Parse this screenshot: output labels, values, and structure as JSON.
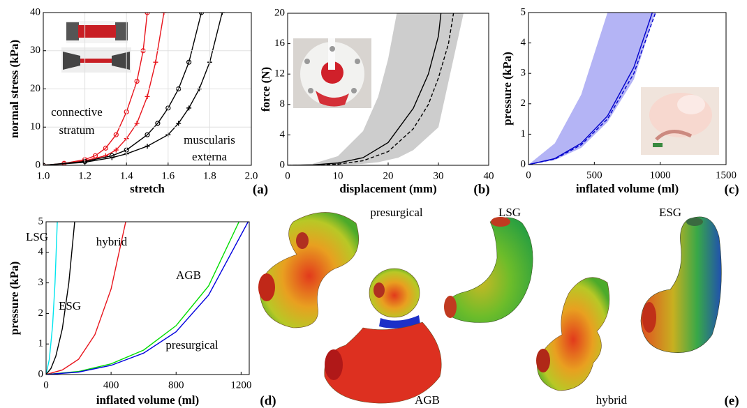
{
  "chart_data": [
    {
      "type": "line",
      "panel_label": "(a)",
      "x_label": "stretch",
      "y_label": "normal stress (kPa)",
      "grid": true,
      "xlim": [
        1.0,
        2.0
      ],
      "xticks": [
        {
          "value": 1.0,
          "label": "1.0"
        },
        1.2,
        1.4,
        1.6,
        1.8,
        {
          "value": 2.0,
          "label": "2.0"
        }
      ],
      "ylim": [
        0,
        40
      ],
      "yticks": [
        0,
        10,
        20,
        30,
        40
      ],
      "annotations": [
        [
          "connective",
          "stratum"
        ],
        [
          "muscularis",
          "externa"
        ]
      ],
      "series": [
        {
          "color": "#e8141c",
          "marker": "circle",
          "x": [
            1.0,
            1.1,
            1.2,
            1.25,
            1.3,
            1.35,
            1.4,
            1.45,
            1.48,
            1.5
          ],
          "values": [
            0,
            0.5,
            1.5,
            2.5,
            4.5,
            8,
            14,
            22,
            30,
            40
          ]
        },
        {
          "color": "#e8141c",
          "marker": "plus",
          "x": [
            1.0,
            1.1,
            1.2,
            1.3,
            1.35,
            1.4,
            1.45,
            1.5,
            1.54,
            1.58
          ],
          "values": [
            0,
            0.4,
            1.2,
            2.5,
            4,
            7,
            11,
            18,
            27,
            40
          ]
        },
        {
          "color": "#000000",
          "marker": "circle",
          "x": [
            1.0,
            1.2,
            1.33,
            1.4,
            1.5,
            1.55,
            1.6,
            1.65,
            1.7,
            1.76
          ],
          "values": [
            0,
            1,
            2.5,
            4,
            8,
            11,
            15,
            20,
            27,
            40
          ]
        },
        {
          "color": "#000000",
          "marker": "plus",
          "x": [
            1.0,
            1.2,
            1.33,
            1.4,
            1.5,
            1.6,
            1.65,
            1.7,
            1.75,
            1.8,
            1.86
          ],
          "values": [
            0,
            0.8,
            2,
            3,
            5,
            8,
            11,
            15,
            20,
            27,
            40
          ]
        }
      ]
    },
    {
      "type": "line",
      "panel_label": "(b)",
      "x_label": "displacement (mm)",
      "y_label": "force (N)",
      "grid": false,
      "xlim": [
        0,
        40
      ],
      "xticks": [
        0,
        10,
        20,
        30,
        40
      ],
      "ylim": [
        0,
        20
      ],
      "yticks": [
        0,
        4,
        8,
        12,
        16,
        20
      ],
      "band": {
        "color": "#cdcdcd",
        "x": [
          0,
          5,
          10,
          15,
          18,
          20,
          22,
          25,
          30,
          35
        ],
        "upper": [
          0,
          0.2,
          1.2,
          4.5,
          9,
          14,
          21,
          32,
          60,
          100
        ],
        "lower": [
          0,
          0.01,
          0.05,
          0.2,
          0.4,
          0.7,
          1,
          2,
          5,
          20
        ]
      },
      "series": [
        {
          "color": "#000000",
          "x": [
            0,
            5,
            10,
            15,
            20,
            25,
            28,
            30,
            30.5
          ],
          "values": [
            0,
            0.05,
            0.3,
            1,
            3,
            7.5,
            12,
            17,
            20
          ]
        },
        {
          "color": "#000000",
          "dash": true,
          "x": [
            0,
            5,
            10,
            15,
            20,
            25,
            28,
            30,
            32,
            33
          ],
          "values": [
            0,
            0.03,
            0.15,
            0.6,
            1.8,
            4.8,
            8,
            11.5,
            16,
            20
          ]
        }
      ]
    },
    {
      "type": "line",
      "panel_label": "(c)",
      "x_label": "inflated volume (ml)",
      "y_label": "pressure (kPa)",
      "grid": false,
      "xlim": [
        0,
        1500
      ],
      "xticks": [
        0,
        500,
        1000,
        1500
      ],
      "ylim": [
        0,
        5
      ],
      "yticks": [
        0,
        1,
        2,
        3,
        4,
        5
      ],
      "band": {
        "color": "#b4b4f5",
        "x": [
          0,
          200,
          400,
          600,
          800,
          1000
        ],
        "upper": [
          0,
          0.7,
          2.3,
          5,
          8.5,
          13
        ],
        "lower": [
          0,
          0.15,
          0.55,
          1.4,
          2.8,
          5.5
        ]
      },
      "series": [
        {
          "color": "#0000cc",
          "x": [
            0,
            200,
            400,
            600,
            800,
            940
          ],
          "values": [
            0,
            0.2,
            0.7,
            1.6,
            3.2,
            5
          ]
        },
        {
          "color": "#0000cc",
          "dash": true,
          "x": [
            0,
            200,
            400,
            600,
            800,
            965
          ],
          "values": [
            0,
            0.18,
            0.65,
            1.5,
            3.0,
            5
          ]
        }
      ]
    },
    {
      "type": "line",
      "panel_label": "(d)",
      "x_label": "inflated volume (ml)",
      "y_label": "pressure (kPa)",
      "grid": false,
      "xlim": [
        0,
        1250
      ],
      "xticks": [
        0,
        400,
        800,
        1200
      ],
      "ylim": [
        0,
        5
      ],
      "yticks": [
        0,
        1,
        2,
        3,
        4,
        5
      ],
      "series": [
        {
          "name": "LSG",
          "color": "#00e5ee",
          "x": [
            0,
            20,
            40,
            55,
            69
          ],
          "values": [
            0,
            0.5,
            1.6,
            3,
            5
          ]
        },
        {
          "name": "ESG",
          "color": "#000000",
          "x": [
            0,
            30,
            60,
            100,
            140,
            176
          ],
          "values": [
            0,
            0.2,
            0.6,
            1.5,
            3,
            5
          ]
        },
        {
          "name": "hybrid",
          "color": "#e8141c",
          "x": [
            0,
            100,
            200,
            300,
            400,
            490
          ],
          "values": [
            0,
            0.15,
            0.5,
            1.3,
            2.8,
            5
          ]
        },
        {
          "name": "AGB",
          "color": "#00dd00",
          "x": [
            0,
            200,
            400,
            600,
            800,
            1000,
            1187
          ],
          "values": [
            0,
            0.1,
            0.35,
            0.8,
            1.6,
            2.9,
            5
          ]
        },
        {
          "name": "presurgical",
          "color": "#0000dd",
          "x": [
            0,
            200,
            400,
            600,
            800,
            1000,
            1243
          ],
          "values": [
            0,
            0.08,
            0.3,
            0.7,
            1.4,
            2.6,
            5
          ]
        }
      ]
    }
  ],
  "meshes": {
    "panel_label": "(e)",
    "labels": [
      "presurgical",
      "LSG",
      "ESG",
      "AGB",
      "hybrid"
    ]
  }
}
